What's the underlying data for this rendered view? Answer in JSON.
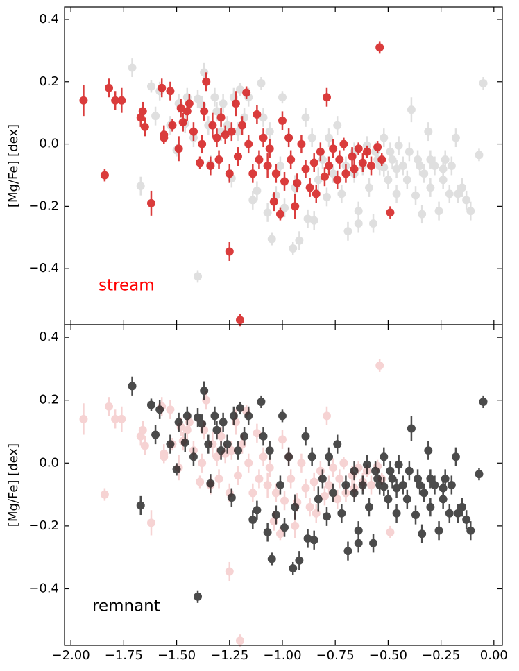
{
  "chart_data": {
    "type": "scatter",
    "ylabel": "[Mg/Fe] [dex]",
    "xlim": [
      -2.03,
      0.04
    ],
    "xticks": [
      {
        "value": -2,
        "label": "−2.00"
      },
      {
        "value": -1.75,
        "label": "−1.75"
      },
      {
        "value": -1.5,
        "label": "−1.50"
      },
      {
        "value": -1.25,
        "label": "−1.25"
      },
      {
        "value": -1,
        "label": "−1.00"
      },
      {
        "value": -0.75,
        "label": "−0.75"
      },
      {
        "value": -0.5,
        "label": "−0.50"
      },
      {
        "value": -0.25,
        "label": "−0.25"
      },
      {
        "value": 0,
        "label": "0.00"
      }
    ],
    "ylim": [
      -0.58,
      0.44
    ],
    "yticks": [
      {
        "value": -0.4,
        "label": "−0.4"
      },
      {
        "value": -0.2,
        "label": "−0.2"
      },
      {
        "value": 0,
        "label": "0.0"
      },
      0.2,
      0.4
    ],
    "series": [
      {
        "name": "stream",
        "color": "#d62728",
        "x": [
          -1.94,
          -1.84,
          -1.82,
          -1.79,
          -1.76,
          -1.67,
          -1.66,
          -1.65,
          -1.62,
          -1.57,
          -1.56,
          -1.56,
          -1.53,
          -1.52,
          -1.49,
          -1.48,
          -1.47,
          -1.45,
          -1.44,
          -1.42,
          -1.39,
          -1.38,
          -1.37,
          -1.36,
          -1.34,
          -1.33,
          -1.31,
          -1.3,
          -1.29,
          -1.27,
          -1.25,
          -1.25,
          -1.24,
          -1.22,
          -1.21,
          -1.2,
          -1.19,
          -1.17,
          -1.16,
          -1.14,
          -1.12,
          -1.11,
          -1.09,
          -1.07,
          -1.06,
          -1.04,
          -1.03,
          -1.01,
          -1.0,
          -0.99,
          -0.97,
          -0.96,
          -0.94,
          -0.93,
          -0.91,
          -0.89,
          -0.87,
          -0.85,
          -0.84,
          -0.82,
          -0.8,
          -0.79,
          -0.78,
          -0.76,
          -0.74,
          -0.73,
          -0.71,
          -0.7,
          -0.67,
          -0.66,
          -0.64,
          -0.62,
          -0.6,
          -0.58,
          -0.55,
          -0.54,
          -0.53,
          -0.49
        ],
        "values": [
          0.14,
          -0.1,
          0.18,
          0.14,
          0.14,
          0.085,
          0.105,
          0.055,
          -0.19,
          0.18,
          0.03,
          0.02,
          0.17,
          0.06,
          -0.015,
          0.115,
          0.07,
          0.105,
          0.13,
          0.04,
          -0.06,
          0.0,
          0.105,
          0.2,
          -0.07,
          0.06,
          0.02,
          -0.05,
          0.085,
          0.03,
          -0.095,
          -0.345,
          0.04,
          0.13,
          -0.04,
          -0.565,
          0.06,
          0.165,
          0.0,
          -0.095,
          0.095,
          -0.05,
          0.02,
          -0.07,
          -0.015,
          -0.185,
          -0.095,
          -0.225,
          0.075,
          -0.12,
          0.02,
          -0.05,
          -0.2,
          -0.125,
          0.0,
          -0.08,
          -0.14,
          -0.06,
          -0.16,
          -0.025,
          -0.105,
          0.15,
          -0.07,
          -0.015,
          -0.115,
          -0.05,
          0.0,
          -0.095,
          -0.04,
          -0.08,
          -0.015,
          -0.06,
          -0.025,
          -0.07,
          -0.01,
          0.31,
          -0.05,
          -0.22
        ],
        "yerr": [
          0.05,
          0.02,
          0.03,
          0.03,
          0.04,
          0.03,
          0.03,
          0.03,
          0.04,
          0.03,
          0.03,
          0.02,
          0.03,
          0.02,
          0.04,
          0.03,
          0.03,
          0.03,
          0.03,
          0.03,
          0.02,
          0.03,
          0.03,
          0.03,
          0.03,
          0.04,
          0.03,
          0.03,
          0.03,
          0.03,
          0.03,
          0.03,
          0.03,
          0.04,
          0.03,
          0.02,
          0.03,
          0.02,
          0.03,
          0.03,
          0.03,
          0.03,
          0.03,
          0.04,
          0.03,
          0.03,
          0.03,
          0.02,
          0.03,
          0.03,
          0.03,
          0.03,
          0.04,
          0.03,
          0.03,
          0.03,
          0.03,
          0.03,
          0.03,
          0.03,
          0.03,
          0.03,
          0.03,
          0.03,
          0.03,
          0.03,
          0.02,
          0.03,
          0.03,
          0.03,
          0.02,
          0.03,
          0.02,
          0.03,
          0.02,
          0.02,
          0.02,
          0.02
        ]
      },
      {
        "name": "remnant",
        "color": "#000000",
        "x": [
          -1.71,
          -1.67,
          -1.62,
          -1.6,
          -1.58,
          -1.53,
          -1.5,
          -1.49,
          -1.46,
          -1.45,
          -1.42,
          -1.4,
          -1.4,
          -1.38,
          -1.37,
          -1.35,
          -1.34,
          -1.32,
          -1.31,
          -1.29,
          -1.28,
          -1.26,
          -1.24,
          -1.23,
          -1.21,
          -1.2,
          -1.18,
          -1.16,
          -1.14,
          -1.12,
          -1.1,
          -1.09,
          -1.07,
          -1.06,
          -1.05,
          -1.03,
          -1.01,
          -1.0,
          -0.99,
          -0.97,
          -0.95,
          -0.94,
          -0.92,
          -0.89,
          -0.88,
          -0.86,
          -0.85,
          -0.83,
          -0.81,
          -0.79,
          -0.78,
          -0.76,
          -0.74,
          -0.72,
          -0.7,
          -0.69,
          -0.66,
          -0.64,
          -0.64,
          -0.62,
          -0.59,
          -0.57,
          -0.56,
          -0.54,
          -0.52,
          -0.5,
          -0.48,
          -0.46,
          -0.45,
          -0.43,
          -0.41,
          -0.39,
          -0.37,
          -0.36,
          -0.34,
          -0.33,
          -0.31,
          -0.3,
          -0.28,
          -0.26,
          -0.24,
          -0.23,
          -0.21,
          -0.2,
          -0.18,
          -0.17,
          -0.15,
          -0.13,
          -0.11,
          -0.07,
          -0.05,
          -0.52,
          -0.6,
          -0.66,
          -0.46,
          -0.4,
          -0.35,
          -0.3,
          -0.24,
          -0.49,
          -0.55
        ],
        "values": [
          0.245,
          -0.135,
          0.185,
          0.09,
          0.17,
          0.06,
          -0.02,
          0.13,
          0.065,
          0.15,
          0.02,
          0.145,
          -0.425,
          0.125,
          0.23,
          0.06,
          -0.065,
          0.15,
          0.105,
          0.04,
          0.13,
          0.06,
          -0.11,
          0.15,
          0.04,
          0.175,
          0.085,
          0.15,
          -0.18,
          -0.15,
          0.195,
          0.085,
          -0.22,
          0.04,
          -0.305,
          -0.165,
          -0.07,
          0.15,
          -0.205,
          0.02,
          -0.335,
          -0.14,
          -0.31,
          0.085,
          -0.24,
          0.02,
          -0.245,
          -0.115,
          -0.05,
          -0.17,
          0.02,
          -0.095,
          0.06,
          -0.16,
          -0.07,
          -0.28,
          -0.025,
          -0.255,
          -0.215,
          -0.07,
          -0.14,
          -0.255,
          -0.025,
          -0.07,
          0.02,
          -0.115,
          -0.05,
          -0.16,
          -0.005,
          -0.07,
          -0.115,
          0.11,
          -0.165,
          -0.05,
          -0.225,
          -0.095,
          0.04,
          -0.14,
          -0.07,
          -0.215,
          -0.115,
          -0.05,
          -0.16,
          -0.07,
          0.02,
          -0.16,
          -0.14,
          -0.18,
          -0.215,
          -0.035,
          0.195,
          -0.075,
          -0.005,
          -0.095,
          -0.08,
          -0.025,
          -0.07,
          -0.05,
          -0.08,
          -0.025,
          -0.05
        ],
        "yerr": [
          0.03,
          0.03,
          0.02,
          0.03,
          0.03,
          0.03,
          0.02,
          0.03,
          0.03,
          0.03,
          0.03,
          0.03,
          0.02,
          0.03,
          0.03,
          0.03,
          0.03,
          0.03,
          0.03,
          0.03,
          0.03,
          0.03,
          0.03,
          0.03,
          0.03,
          0.02,
          0.03,
          0.03,
          0.03,
          0.03,
          0.02,
          0.03,
          0.03,
          0.03,
          0.02,
          0.03,
          0.03,
          0.02,
          0.03,
          0.03,
          0.02,
          0.04,
          0.03,
          0.03,
          0.03,
          0.03,
          0.03,
          0.04,
          0.03,
          0.03,
          0.03,
          0.03,
          0.03,
          0.03,
          0.03,
          0.03,
          0.03,
          0.03,
          0.03,
          0.03,
          0.03,
          0.03,
          0.03,
          0.03,
          0.03,
          0.03,
          0.03,
          0.03,
          0.03,
          0.03,
          0.03,
          0.04,
          0.03,
          0.03,
          0.03,
          0.03,
          0.03,
          0.03,
          0.03,
          0.03,
          0.03,
          0.03,
          0.03,
          0.03,
          0.03,
          0.03,
          0.03,
          0.03,
          0.03,
          0.02,
          0.02,
          0.03,
          0.03,
          0.03,
          0.03,
          0.03,
          0.03,
          0.03,
          0.03,
          0.03,
          0.03
        ]
      }
    ]
  }
}
